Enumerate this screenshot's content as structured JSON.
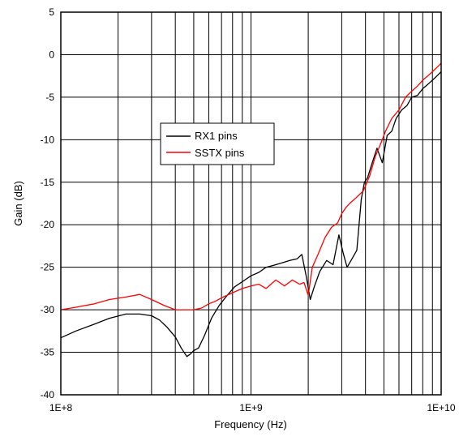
{
  "chart_data": {
    "type": "line",
    "xlabel": "Frequency (Hz)",
    "ylabel": "Gain (dB)",
    "xscale": "log",
    "xlim": [
      100000000,
      10000000000
    ],
    "ylim": [
      -40,
      5
    ],
    "xticks": [
      100000000,
      1000000000,
      10000000000
    ],
    "xtick_labels": [
      "1E+8",
      "1E+9",
      "1E+10"
    ],
    "yticks": [
      5,
      0,
      -5,
      -10,
      -15,
      -20,
      -25,
      -30,
      -35,
      -40
    ],
    "ytick_labels": [
      "5",
      "0",
      "-5",
      "-10",
      "-15",
      "-20",
      "-25",
      "-30",
      "-35",
      "-40"
    ],
    "grid": true,
    "legend_position": "center",
    "series": [
      {
        "name": "RX1 pins",
        "color": "#000000",
        "x": [
          100000000,
          120000000,
          150000000,
          180000000,
          220000000,
          260000000,
          300000000,
          330000000,
          360000000,
          400000000,
          430000000,
          460000000,
          480000000,
          500000000,
          530000000,
          570000000,
          620000000,
          680000000,
          750000000,
          820000000,
          900000000,
          1000000000,
          1100000000,
          1200000000,
          1300000000,
          1450000000,
          1600000000,
          1750000000,
          1850000000,
          1950000000,
          2050000000,
          2150000000,
          2300000000,
          2500000000,
          2700000000,
          2900000000,
          3050000000,
          3200000000,
          3400000000,
          3600000000,
          3800000000,
          3950000000,
          4100000000,
          4300000000,
          4600000000,
          4900000000,
          5200000000,
          5500000000,
          5800000000,
          6200000000,
          6600000000,
          7000000000,
          7500000000,
          8000000000,
          8500000000,
          9000000000,
          9500000000,
          10000000000
        ],
        "y": [
          -33.3,
          -32.5,
          -31.7,
          -31.0,
          -30.5,
          -30.5,
          -30.7,
          -31.2,
          -32.0,
          -33.2,
          -34.5,
          -35.5,
          -35.2,
          -34.8,
          -34.5,
          -33.0,
          -31.0,
          -29.5,
          -28.3,
          -27.3,
          -26.7,
          -26.0,
          -25.6,
          -25.0,
          -24.8,
          -24.5,
          -24.2,
          -24.0,
          -23.5,
          -26.0,
          -28.8,
          -27.3,
          -25.5,
          -24.2,
          -24.7,
          -21.2,
          -23.3,
          -25.0,
          -24.0,
          -23.0,
          -17.0,
          -15.0,
          -14.5,
          -13.0,
          -11.0,
          -12.7,
          -9.5,
          -9.0,
          -7.5,
          -6.5,
          -6.0,
          -5.0,
          -4.8,
          -4.0,
          -3.5,
          -3.0,
          -2.5,
          -2.0
        ]
      },
      {
        "name": "SSTX pins",
        "color": "#ff0000",
        "x": [
          100000000,
          120000000,
          150000000,
          180000000,
          220000000,
          260000000,
          300000000,
          350000000,
          400000000,
          450000000,
          500000000,
          550000000,
          600000000,
          650000000,
          700000000,
          800000000,
          900000000,
          1000000000,
          1100000000,
          1200000000,
          1350000000,
          1500000000,
          1650000000,
          1800000000,
          1900000000,
          2000000000,
          2100000000,
          2250000000,
          2450000000,
          2650000000,
          2850000000,
          3000000000,
          3150000000,
          3300000000,
          3500000000,
          3700000000,
          3900000000,
          4200000000,
          4500000000,
          4800000000,
          5100000000,
          5500000000,
          6000000000,
          6500000000,
          7000000000,
          7500000000,
          8000000000,
          8500000000,
          9000000000,
          9500000000,
          10000000000
        ],
        "y": [
          -30.0,
          -29.7,
          -29.3,
          -28.8,
          -28.5,
          -28.2,
          -28.8,
          -29.5,
          -30.0,
          -30.0,
          -30.0,
          -29.8,
          -29.3,
          -29.0,
          -28.6,
          -28.0,
          -27.5,
          -27.2,
          -27.0,
          -27.5,
          -26.5,
          -27.2,
          -26.5,
          -27.0,
          -26.8,
          -28.3,
          -25.0,
          -23.5,
          -21.5,
          -20.3,
          -19.8,
          -18.7,
          -18.0,
          -17.5,
          -17.0,
          -16.5,
          -16.0,
          -14.3,
          -12.0,
          -10.5,
          -9.0,
          -7.5,
          -6.5,
          -5.0,
          -4.3,
          -3.7,
          -3.0,
          -2.5,
          -2.0,
          -1.5,
          -1.0
        ]
      }
    ]
  }
}
